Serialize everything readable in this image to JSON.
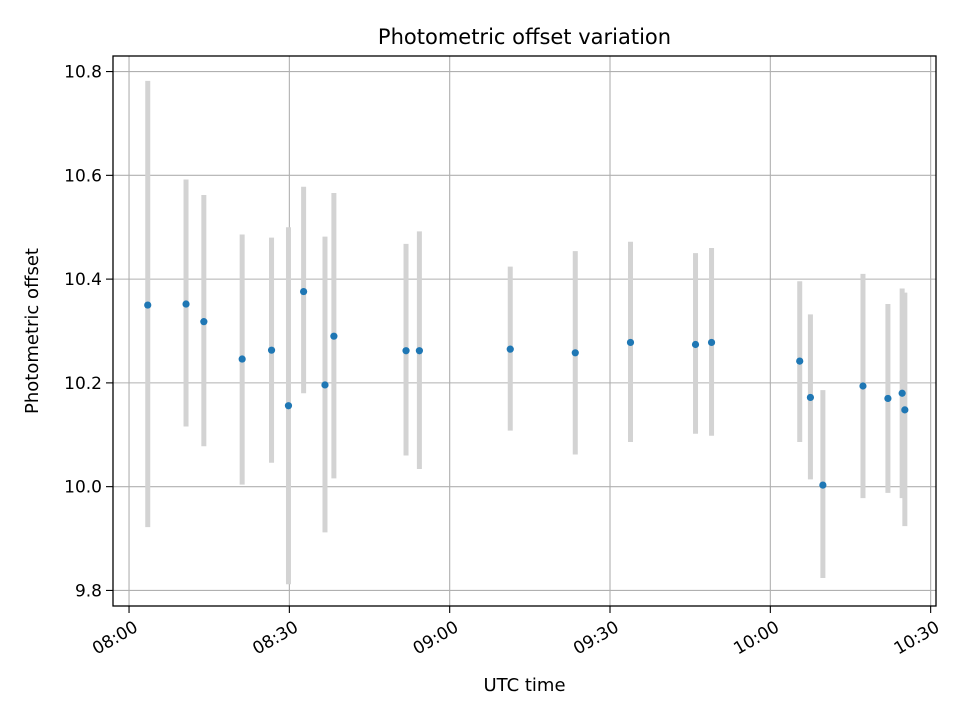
{
  "chart_data": {
    "type": "scatter",
    "title": "Photometric offset variation",
    "xlabel": "UTC time",
    "ylabel": "Photometric offset",
    "x_axis_kind": "time",
    "xlim": [
      "07:57",
      "10:31"
    ],
    "ylim": [
      9.77,
      10.83
    ],
    "x_ticks": [
      "08:00",
      "08:30",
      "09:00",
      "09:30",
      "10:00",
      "10:30"
    ],
    "y_ticks": [
      9.8,
      10.0,
      10.2,
      10.4,
      10.6,
      10.8
    ],
    "y_tick_labels": [
      "9.8",
      "10.0",
      "10.2",
      "10.4",
      "10.6",
      "10.8"
    ],
    "grid": true,
    "legend": "none",
    "colors": {
      "point": "#1f77b4",
      "errorbar": "#d3d3d3",
      "grid": "#b0b0b0",
      "axes": "#000000"
    },
    "points": [
      {
        "x": "08:03:30",
        "y": 10.35,
        "ylow": 9.922,
        "yhigh": 10.782
      },
      {
        "x": "08:10:40",
        "y": 10.352,
        "ylow": 10.116,
        "yhigh": 10.592
      },
      {
        "x": "08:14:00",
        "y": 10.318,
        "ylow": 10.078,
        "yhigh": 10.562
      },
      {
        "x": "08:21:10",
        "y": 10.246,
        "ylow": 10.004,
        "yhigh": 10.486
      },
      {
        "x": "08:26:40",
        "y": 10.263,
        "ylow": 10.046,
        "yhigh": 10.48
      },
      {
        "x": "08:29:50",
        "y": 10.156,
        "ylow": 9.812,
        "yhigh": 10.5
      },
      {
        "x": "08:32:40",
        "y": 10.376,
        "ylow": 10.18,
        "yhigh": 10.578
      },
      {
        "x": "08:36:40",
        "y": 10.196,
        "ylow": 9.912,
        "yhigh": 10.482
      },
      {
        "x": "08:38:20",
        "y": 10.29,
        "ylow": 10.016,
        "yhigh": 10.566
      },
      {
        "x": "08:51:50",
        "y": 10.262,
        "ylow": 10.06,
        "yhigh": 10.468
      },
      {
        "x": "08:54:20",
        "y": 10.262,
        "ylow": 10.034,
        "yhigh": 10.492
      },
      {
        "x": "09:11:20",
        "y": 10.265,
        "ylow": 10.108,
        "yhigh": 10.424
      },
      {
        "x": "09:23:30",
        "y": 10.258,
        "ylow": 10.062,
        "yhigh": 10.454
      },
      {
        "x": "09:33:50",
        "y": 10.278,
        "ylow": 10.086,
        "yhigh": 10.472
      },
      {
        "x": "09:46:00",
        "y": 10.274,
        "ylow": 10.102,
        "yhigh": 10.45
      },
      {
        "x": "09:49:00",
        "y": 10.278,
        "ylow": 10.098,
        "yhigh": 10.46
      },
      {
        "x": "10:05:30",
        "y": 10.242,
        "ylow": 10.086,
        "yhigh": 10.396
      },
      {
        "x": "10:07:30",
        "y": 10.172,
        "ylow": 10.014,
        "yhigh": 10.332
      },
      {
        "x": "10:09:50",
        "y": 10.003,
        "ylow": 9.824,
        "yhigh": 10.186
      },
      {
        "x": "10:17:20",
        "y": 10.194,
        "ylow": 9.978,
        "yhigh": 10.41
      },
      {
        "x": "10:22:00",
        "y": 10.17,
        "ylow": 9.988,
        "yhigh": 10.352
      },
      {
        "x": "10:24:40",
        "y": 10.18,
        "ylow": 9.978,
        "yhigh": 10.382
      },
      {
        "x": "10:25:10",
        "y": 10.148,
        "ylow": 9.924,
        "yhigh": 10.374
      }
    ]
  }
}
